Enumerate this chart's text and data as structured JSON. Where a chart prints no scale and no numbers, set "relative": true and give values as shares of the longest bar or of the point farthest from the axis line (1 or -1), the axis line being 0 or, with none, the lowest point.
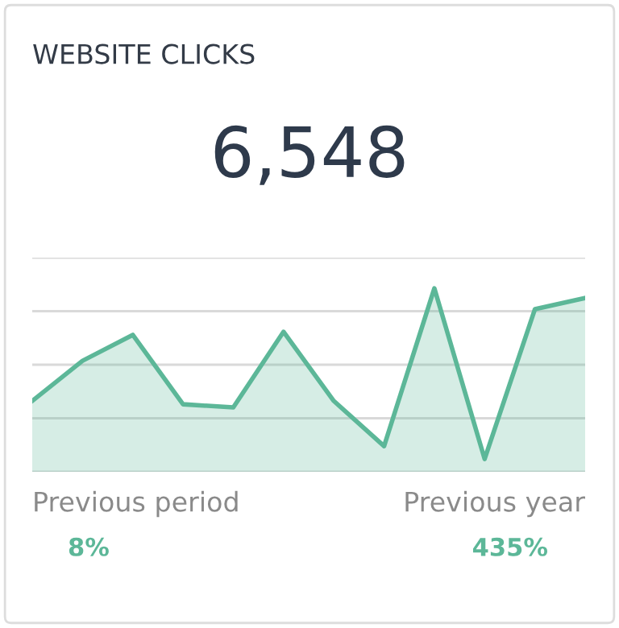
{
  "chart_data": {
    "type": "area",
    "title": "WEBSITE CLICKS",
    "relative": true,
    "grid": "y",
    "categories": [
      null,
      null,
      null,
      null,
      null,
      null,
      null,
      null,
      null,
      null,
      null,
      null
    ],
    "series": [
      {
        "color": "#5cb798",
        "values": [
          0.386,
          0.605,
          0.746,
          0.368,
          0.351,
          0.763,
          0.386,
          0.14,
          1,
          0.07,
          0.886,
          0.947
        ]
      }
    ],
    "annotations": [
      "6,548",
      "Previous period",
      "8%",
      "Previous year",
      "435%"
    ]
  }
}
